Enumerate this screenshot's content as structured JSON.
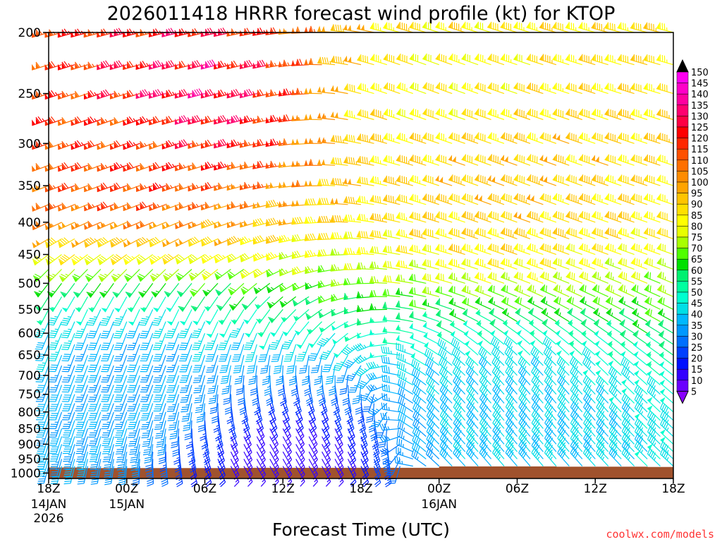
{
  "chart_data": {
    "type": "wind-barb-time-height",
    "title": "2026011418 HRRR forecast wind profile (kt) for KTOP",
    "xlabel": "Forecast Time (UTC)",
    "ylabel": "",
    "credit": "coolwx.com/models",
    "x_ticks": [
      {
        "hours": 0,
        "label": "18Z",
        "sub1": "14JAN",
        "sub2": "2026"
      },
      {
        "hours": 6,
        "label": "00Z",
        "sub1": "15JAN",
        "sub2": ""
      },
      {
        "hours": 12,
        "label": "06Z",
        "sub1": "",
        "sub2": ""
      },
      {
        "hours": 18,
        "label": "12Z",
        "sub1": "",
        "sub2": ""
      },
      {
        "hours": 24,
        "label": "18Z",
        "sub1": "",
        "sub2": ""
      },
      {
        "hours": 30,
        "label": "00Z",
        "sub1": "16JAN",
        "sub2": ""
      },
      {
        "hours": 36,
        "label": "06Z",
        "sub1": "",
        "sub2": ""
      },
      {
        "hours": 42,
        "label": "12Z",
        "sub1": "",
        "sub2": ""
      },
      {
        "hours": 48,
        "label": "18Z",
        "sub1": "",
        "sub2": ""
      }
    ],
    "xlim_hours": [
      0,
      48
    ],
    "y_ticks_hpa": [
      200,
      250,
      300,
      350,
      400,
      450,
      500,
      550,
      600,
      650,
      700,
      750,
      800,
      850,
      900,
      950,
      1000
    ],
    "ylim_hpa": [
      200,
      1020
    ],
    "y_scale": "log-pressure",
    "colorbar": {
      "ticks": [
        5,
        10,
        15,
        20,
        25,
        30,
        35,
        40,
        45,
        50,
        55,
        60,
        65,
        70,
        75,
        80,
        85,
        90,
        95,
        100,
        105,
        110,
        115,
        120,
        125,
        130,
        135,
        140,
        145,
        150
      ],
      "colors": [
        "#8800ff",
        "#6a00ff",
        "#3300ff",
        "#0010ff",
        "#0040ff",
        "#0070ff",
        "#0098ff",
        "#00b8ff",
        "#00dfe6",
        "#00ffd0",
        "#00ffa0",
        "#00f070",
        "#00e000",
        "#50ff00",
        "#a8ff00",
        "#e8ff00",
        "#ffff00",
        "#ffe000",
        "#ffc400",
        "#ffa400",
        "#ff8c00",
        "#ff7000",
        "#ff5000",
        "#ff2800",
        "#ff0000",
        "#ff0044",
        "#ff0070",
        "#ff00a0",
        "#ff00c8",
        "#ff00f0"
      ]
    },
    "barb_levels_hpa": [
      200,
      225,
      250,
      275,
      300,
      325,
      350,
      375,
      400,
      425,
      450,
      475,
      500,
      525,
      550,
      575,
      600,
      625,
      650,
      675,
      700,
      725,
      750,
      775,
      800,
      825,
      850,
      875,
      900,
      925,
      950,
      975
    ],
    "barb_times_hours": [
      0,
      1,
      2,
      3,
      4,
      5,
      6,
      7,
      8,
      9,
      10,
      11,
      12,
      13,
      14,
      15,
      16,
      17,
      18,
      19,
      20,
      21,
      22,
      23,
      24,
      25,
      26,
      27,
      28,
      29,
      30,
      31,
      32,
      33,
      34,
      35,
      36,
      37,
      38,
      39,
      40,
      41,
      42,
      43,
      44,
      45,
      46,
      47,
      48
    ],
    "key_points": [
      {
        "hours": 6,
        "hpa": 300,
        "speed_kt": 125,
        "direction_deg": 250
      },
      {
        "hours": 12,
        "hpa": 250,
        "speed_kt": 140,
        "direction_deg": 255
      },
      {
        "hours": 30,
        "hpa": 250,
        "speed_kt": 90,
        "direction_deg": 290
      },
      {
        "hours": 36,
        "hpa": 350,
        "speed_kt": 100,
        "direction_deg": 290
      },
      {
        "hours": 6,
        "hpa": 700,
        "speed_kt": 40,
        "direction_deg": 200
      },
      {
        "hours": 18,
        "hpa": 950,
        "speed_kt": 15,
        "direction_deg": 150
      },
      {
        "hours": 36,
        "hpa": 850,
        "speed_kt": 45,
        "direction_deg": 320
      }
    ],
    "terrain": {
      "color": "#a0522d",
      "surface_hpa": [
        {
          "hours": 0,
          "hpa": 980
        },
        {
          "hours": 2.5,
          "hpa": 982
        },
        {
          "hours": 15,
          "hpa": 981
        },
        {
          "hours": 30,
          "hpa": 976
        },
        {
          "hours": 39,
          "hpa": 977
        },
        {
          "hours": 46,
          "hpa": 978
        },
        {
          "hours": 48,
          "hpa": 978
        }
      ]
    }
  }
}
